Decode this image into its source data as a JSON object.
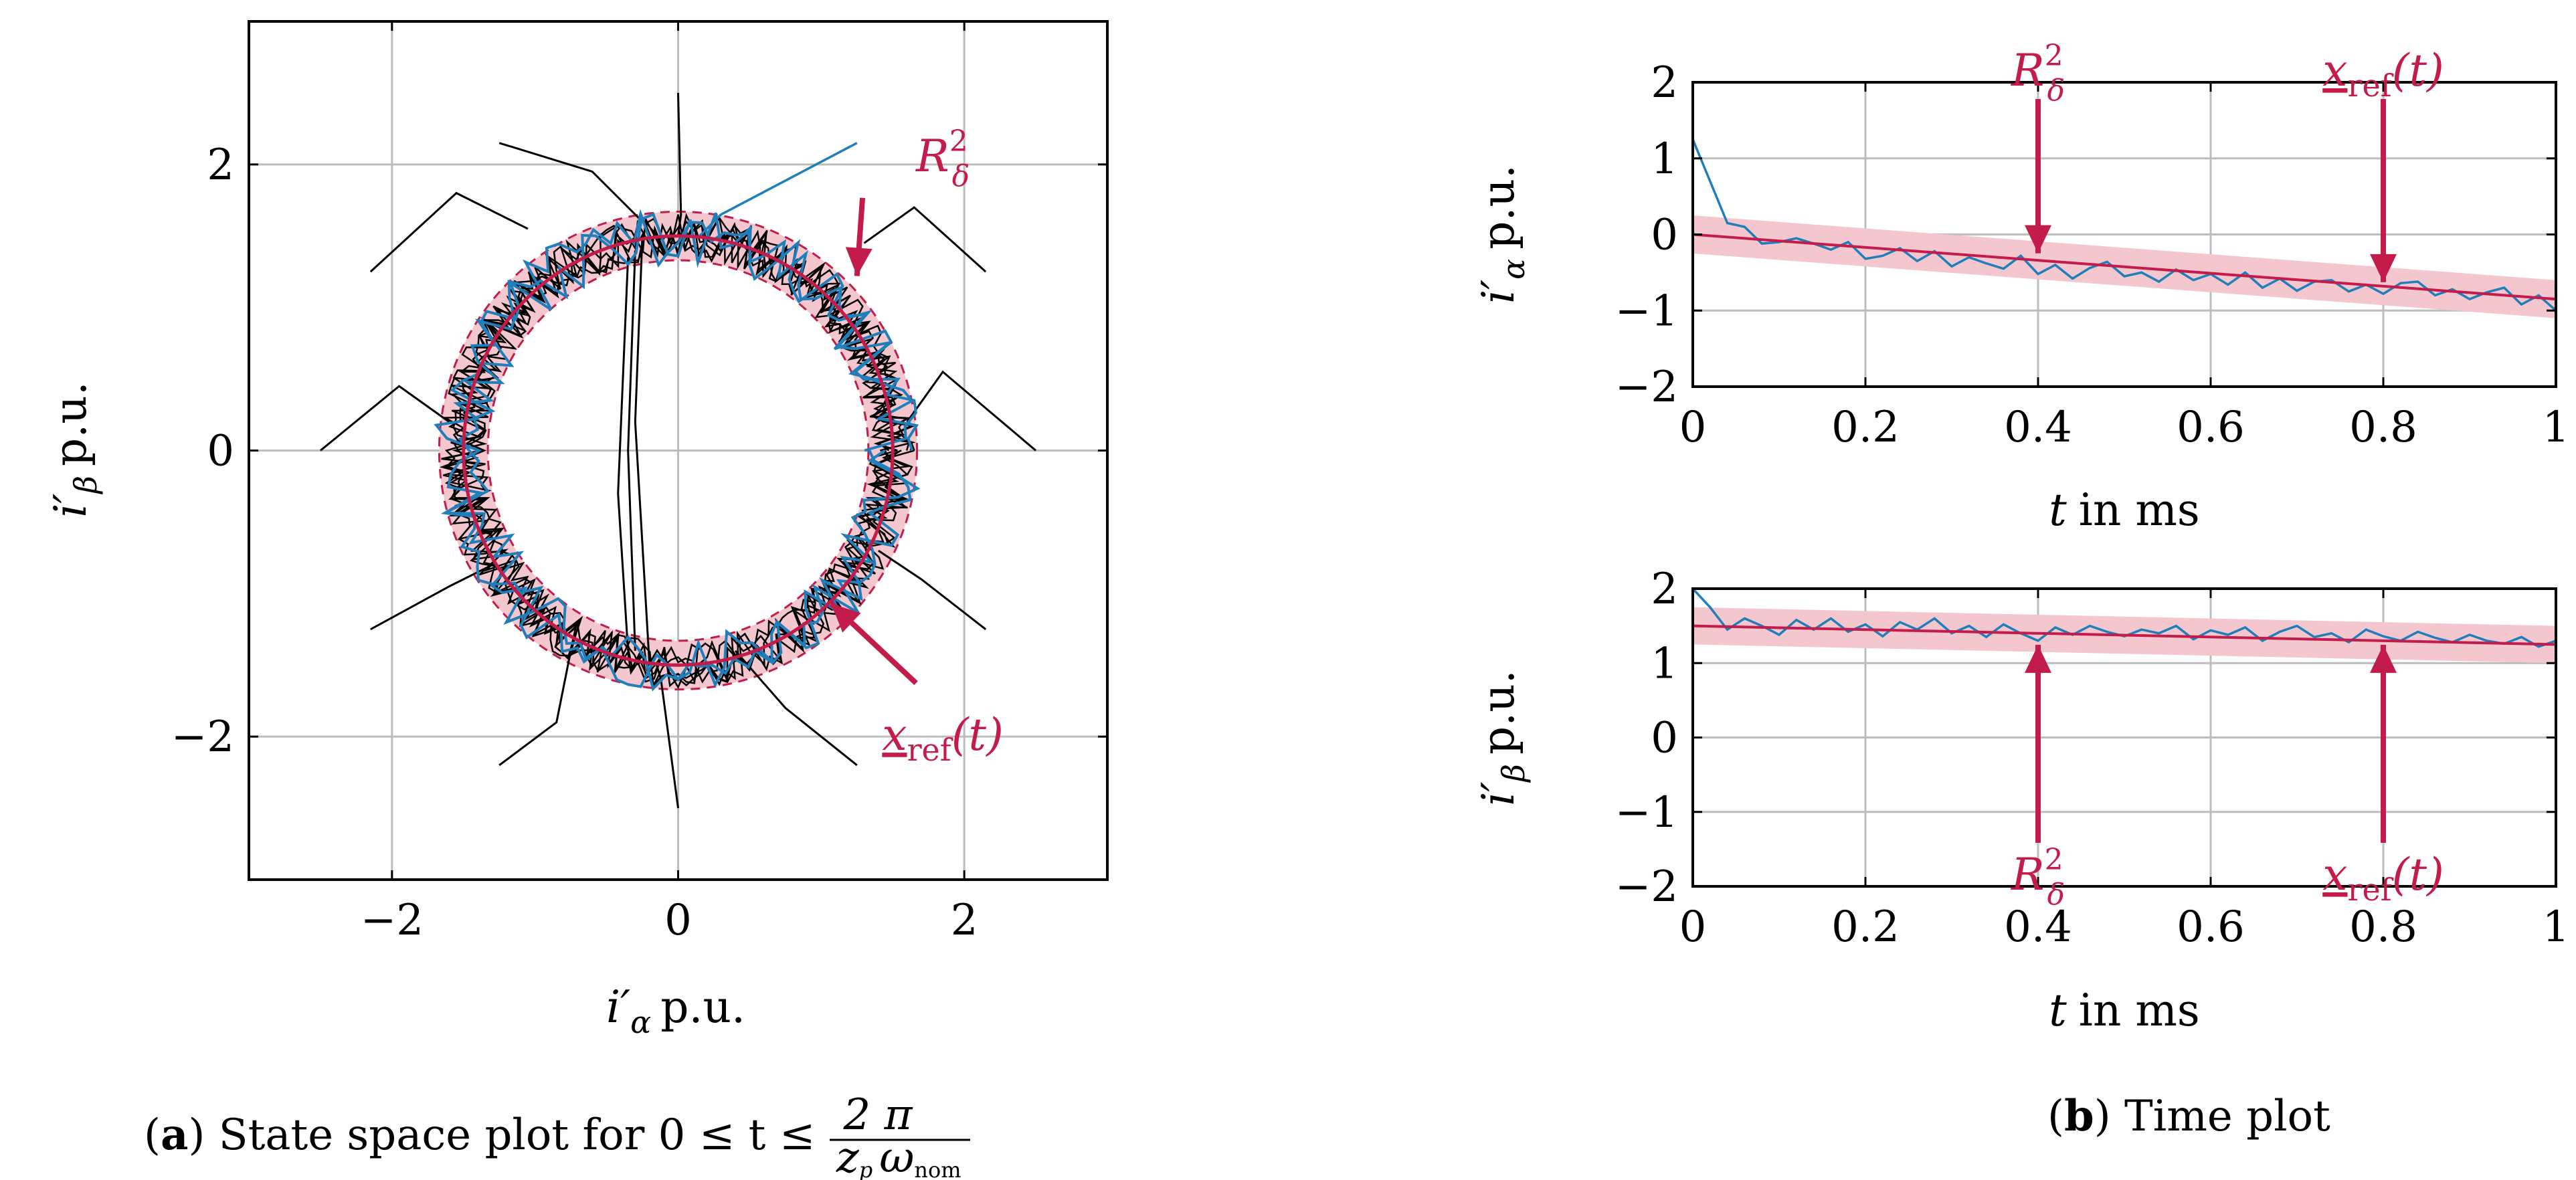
{
  "colors": {
    "reference": "#c31c4a",
    "band": "#f4c7cf",
    "trajectory": "#1f7fba",
    "paths": "#000000",
    "grid": "#bdbdbd"
  },
  "captions": {
    "a": {
      "label": "a",
      "text": "State space plot for 0 ≤ t ≤",
      "frac_num": "2 π",
      "frac_den_zp": "z",
      "frac_den_p": "p",
      "frac_den_omega": "ω",
      "frac_den_sub": "nom"
    },
    "b": {
      "label": "b",
      "text": "Time plot"
    }
  },
  "chart_data": [
    {
      "id": "state-space",
      "type": "line",
      "title": "",
      "xlabel": {
        "symbol": "i′",
        "sub": "α",
        "unit": "p.u."
      },
      "ylabel": {
        "symbol": "i′",
        "sub": "β",
        "unit": "p.u."
      },
      "xlim": [
        -3,
        3
      ],
      "ylim": [
        -3,
        3
      ],
      "xticks": [
        -2,
        0,
        2
      ],
      "yticks": [
        -2,
        0,
        2
      ],
      "xtick_labels": [
        "−2",
        "0",
        "2"
      ],
      "ytick_labels": [
        "−2",
        "0",
        "2"
      ],
      "grid": true,
      "reference_circle": {
        "center": [
          0,
          0
        ],
        "radius": 1.5
      },
      "band_halfwidth": 0.17,
      "trajectory_noise": 0.1,
      "start_paths": [
        [
          [
            -2.15,
            1.25
          ],
          [
            -1.55,
            1.8
          ],
          [
            -1.05,
            1.55
          ]
        ],
        [
          [
            -2.5,
            0.0
          ],
          [
            -1.95,
            0.45
          ],
          [
            -1.6,
            0.2
          ]
        ],
        [
          [
            -2.15,
            -1.25
          ],
          [
            -1.6,
            -0.95
          ],
          [
            -1.3,
            -0.8
          ]
        ],
        [
          [
            -1.25,
            -2.2
          ],
          [
            -0.85,
            -1.9
          ],
          [
            -0.75,
            -1.4
          ]
        ],
        [
          [
            2.15,
            1.25
          ],
          [
            1.65,
            1.7
          ],
          [
            1.3,
            1.45
          ]
        ],
        [
          [
            2.5,
            0.0
          ],
          [
            1.85,
            0.55
          ],
          [
            1.6,
            0.2
          ]
        ],
        [
          [
            2.15,
            -1.25
          ],
          [
            1.7,
            -0.9
          ],
          [
            1.4,
            -0.7
          ]
        ],
        [
          [
            1.25,
            -2.2
          ],
          [
            0.75,
            -1.8
          ],
          [
            0.4,
            -1.4
          ]
        ],
        [
          [
            0.0,
            2.5
          ],
          [
            0.02,
            1.65
          ],
          [
            0.0,
            1.5
          ]
        ],
        [
          [
            -1.25,
            2.15
          ],
          [
            -0.6,
            1.95
          ],
          [
            -0.25,
            1.6
          ]
        ],
        [
          [
            -0.3,
            1.4
          ],
          [
            -0.35,
            0.0
          ],
          [
            -0.3,
            -1.4
          ]
        ],
        [
          [
            -0.35,
            1.35
          ],
          [
            -0.42,
            -0.3
          ],
          [
            -0.35,
            -1.4
          ]
        ],
        [
          [
            -0.25,
            1.5
          ],
          [
            -0.3,
            0.2
          ],
          [
            -0.2,
            -1.5
          ]
        ],
        [
          [
            0.0,
            -2.5
          ],
          [
            -0.12,
            -1.6
          ],
          [
            -0.15,
            -1.5
          ]
        ]
      ],
      "blue_start_segment": [
        [
          1.25,
          2.15
        ],
        [
          0.3,
          1.65
        ],
        [
          0.15,
          1.5
        ]
      ],
      "annotations": [
        {
          "text": "R",
          "sup": "2",
          "sub": "δ",
          "x": 1.85,
          "y": 2.0,
          "arrow_to": [
            1.25,
            1.22
          ]
        },
        {
          "text": "x",
          "sub": "ref",
          "arg": "(t)",
          "x": 1.85,
          "y": -2.0,
          "arrow_to": [
            1.07,
            -1.07
          ]
        }
      ]
    },
    {
      "id": "time-alpha",
      "type": "line",
      "xlabel": {
        "symbol": "t",
        "unit": "in ms"
      },
      "ylabel": {
        "symbol": "i′",
        "sub": "α",
        "unit": "p.u."
      },
      "xlim": [
        0,
        1
      ],
      "ylim": [
        -2,
        2
      ],
      "xticks": [
        0,
        0.2,
        0.4,
        0.6,
        0.8,
        1
      ],
      "xtick_labels": [
        "0",
        "0.2",
        "0.4",
        "0.6",
        "0.8",
        "1"
      ],
      "yticks": [
        -2,
        -1,
        0,
        1,
        2
      ],
      "ytick_labels": [
        "−2",
        "−1",
        "0",
        "1",
        "2"
      ],
      "grid": true,
      "reference": {
        "y0": 0.0,
        "y1": -0.85
      },
      "band_halfwidth": 0.25,
      "series_x_step": 0.02,
      "series": [
        1.25,
        0.7,
        0.15,
        0.1,
        -0.12,
        -0.1,
        -0.05,
        -0.12,
        -0.2,
        -0.1,
        -0.32,
        -0.28,
        -0.18,
        -0.35,
        -0.22,
        -0.42,
        -0.3,
        -0.38,
        -0.45,
        -0.28,
        -0.52,
        -0.4,
        -0.58,
        -0.44,
        -0.36,
        -0.55,
        -0.5,
        -0.62,
        -0.46,
        -0.6,
        -0.52,
        -0.66,
        -0.5,
        -0.7,
        -0.58,
        -0.74,
        -0.62,
        -0.6,
        -0.75,
        -0.66,
        -0.78,
        -0.64,
        -0.62,
        -0.8,
        -0.72,
        -0.85,
        -0.76,
        -0.7,
        -0.92,
        -0.8,
        -1.0
      ],
      "annotations": [
        {
          "text": "R",
          "sup": "2",
          "sub": "δ",
          "x": 0.4,
          "y": 1.3,
          "arrow_to": [
            0.4,
            -0.3
          ]
        },
        {
          "text": "x",
          "sub": "ref",
          "arg": "(t)",
          "x": 0.8,
          "y": 1.3,
          "arrow_to": [
            0.8,
            -0.68
          ]
        }
      ]
    },
    {
      "id": "time-beta",
      "type": "line",
      "xlabel": {
        "symbol": "t",
        "unit": "in ms"
      },
      "ylabel": {
        "symbol": "i′",
        "sub": "β",
        "unit": "p.u."
      },
      "xlim": [
        0,
        1
      ],
      "ylim": [
        -2,
        2
      ],
      "xticks": [
        0,
        0.2,
        0.4,
        0.6,
        0.8,
        1
      ],
      "xtick_labels": [
        "0",
        "0.2",
        "0.4",
        "0.6",
        "0.8",
        "1"
      ],
      "yticks": [
        -2,
        -1,
        0,
        1,
        2
      ],
      "ytick_labels": [
        "−2",
        "−1",
        "0",
        "1",
        "2"
      ],
      "grid": true,
      "reference": {
        "y0": 1.5,
        "y1": 1.25
      },
      "band_halfwidth": 0.25,
      "series_x_step": 0.02,
      "series": [
        2.0,
        1.75,
        1.45,
        1.6,
        1.5,
        1.38,
        1.58,
        1.45,
        1.6,
        1.42,
        1.52,
        1.36,
        1.55,
        1.45,
        1.6,
        1.4,
        1.5,
        1.35,
        1.52,
        1.4,
        1.3,
        1.48,
        1.38,
        1.5,
        1.42,
        1.36,
        1.45,
        1.4,
        1.5,
        1.32,
        1.44,
        1.38,
        1.48,
        1.3,
        1.42,
        1.5,
        1.35,
        1.4,
        1.28,
        1.45,
        1.36,
        1.3,
        1.42,
        1.34,
        1.28,
        1.38,
        1.3,
        1.26,
        1.35,
        1.22,
        1.3
      ],
      "annotations": [
        {
          "text": "R",
          "sup": "2",
          "sub": "δ",
          "x": 0.4,
          "y": -1.1,
          "arrow_to": [
            0.4,
            1.3
          ]
        },
        {
          "text": "x",
          "sub": "ref",
          "arg": "(t)",
          "x": 0.8,
          "y": -1.1,
          "arrow_to": [
            0.8,
            1.3
          ]
        }
      ]
    }
  ]
}
